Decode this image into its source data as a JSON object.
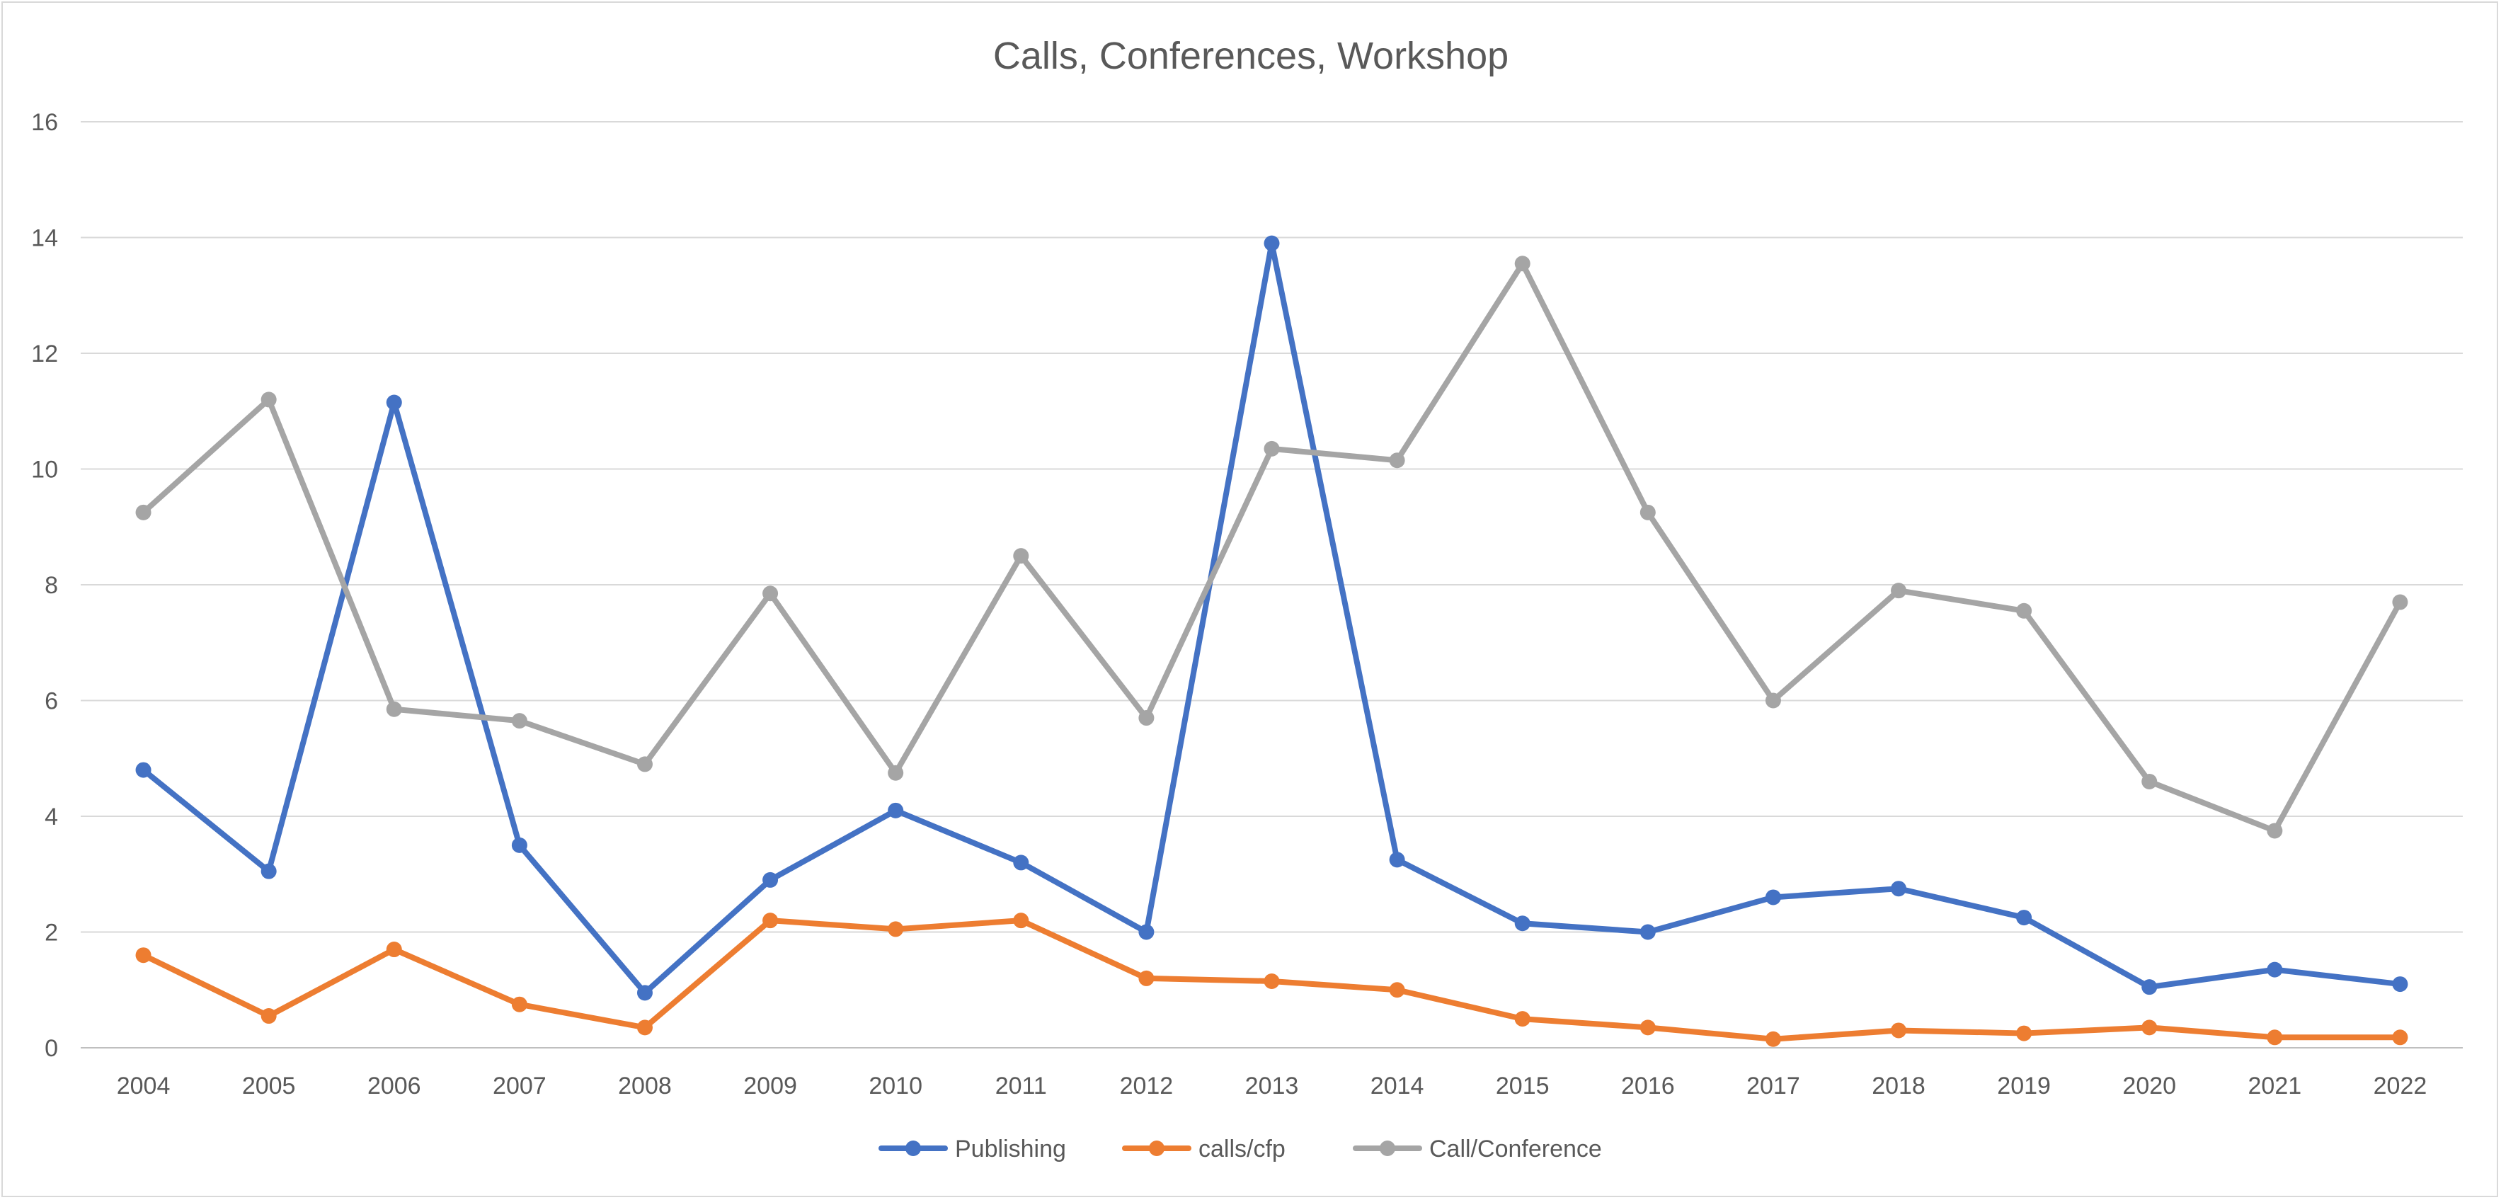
{
  "chart_data": {
    "type": "line",
    "title": "Calls, Conferences, Workshop",
    "xlabel": "",
    "ylabel": "",
    "categories": [
      "2004",
      "2005",
      "2006",
      "2007",
      "2008",
      "2009",
      "2010",
      "2011",
      "2012",
      "2013",
      "2014",
      "2015",
      "2016",
      "2017",
      "2018",
      "2019",
      "2020",
      "2021",
      "2022"
    ],
    "ylim": [
      0,
      16
    ],
    "yticks": [
      0,
      2,
      4,
      6,
      8,
      10,
      12,
      14,
      16
    ],
    "grid": "horizontal",
    "legend_position": "bottom",
    "series": [
      {
        "name": "Publishing",
        "color": "#4472c4",
        "values": [
          4.8,
          3.05,
          11.15,
          3.5,
          0.95,
          2.9,
          4.1,
          3.2,
          2.0,
          13.9,
          3.25,
          2.15,
          2.0,
          2.6,
          2.75,
          2.25,
          1.05,
          1.35,
          1.1
        ]
      },
      {
        "name": "calls/cfp",
        "color": "#ed7d31",
        "values": [
          1.6,
          0.55,
          1.7,
          0.75,
          0.35,
          2.2,
          2.05,
          2.2,
          1.2,
          1.15,
          1.0,
          0.5,
          0.35,
          0.15,
          0.3,
          0.25,
          0.35,
          0.18,
          0.18
        ]
      },
      {
        "name": "Call/Conference",
        "color": "#a5a5a5",
        "values": [
          9.25,
          11.2,
          5.85,
          5.65,
          4.9,
          7.85,
          4.75,
          8.5,
          5.7,
          10.35,
          10.15,
          13.55,
          9.25,
          6.0,
          7.9,
          7.55,
          4.6,
          3.75,
          7.7
        ]
      }
    ]
  }
}
